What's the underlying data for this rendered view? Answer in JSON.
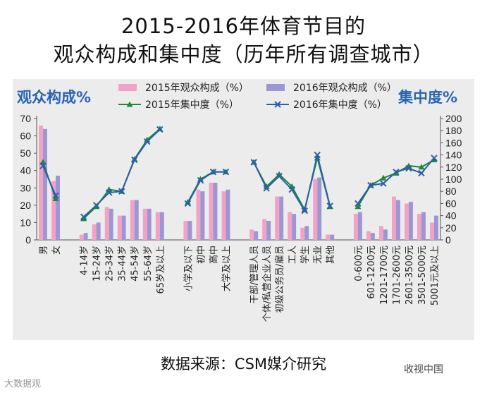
{
  "title_lines": [
    "2015-2016年体育节目的",
    "观众构成和集中度（历年所有调查城市）"
  ],
  "left_axis_label": "观众构成%",
  "right_axis_label": "集中度%",
  "source": "数据来源：CSM媒介研究",
  "watermark_left": "大数据观",
  "watermark_right": "收视中国",
  "colors": {
    "bar2015": "#f2a2c6",
    "bar2016": "#9c97d3",
    "line2015": "#1b8a3b",
    "line2016": "#2d5da8",
    "axis_label": "#2a64b0"
  },
  "chart_data": {
    "type": "bar+line",
    "legend_position": "top",
    "legend": [
      "2015年观众构成（%）",
      "2016年观众构成（%）",
      "2015年集中度（%）",
      "2016年集中度（%）"
    ],
    "categories": [
      "男",
      "女",
      "4-14岁",
      "15-24岁",
      "25-34岁",
      "35-44岁",
      "45-54岁",
      "55-64岁",
      "65岁及以上",
      "小学及以下",
      "初中",
      "高中",
      "大学及以上",
      "干部/管理人员",
      "个体/私营企业人员",
      "初级公务员/雇员",
      "工人",
      "学生",
      "无业",
      "其他",
      "0-600元",
      "601-1200元",
      "1201-1700元",
      "1701-2600元",
      "2601-3500元",
      "3501-5000元",
      "5001元及以上"
    ],
    "groups": [
      2,
      7,
      4,
      7,
      7
    ],
    "left_axis": {
      "min": 0,
      "max": 70,
      "ticks": [
        0,
        10,
        20,
        30,
        40,
        50,
        60,
        70
      ]
    },
    "right_axis": {
      "min": 0,
      "max": 200,
      "ticks": [
        0,
        20,
        40,
        60,
        80,
        100,
        120,
        140,
        160,
        180,
        200
      ]
    },
    "series": [
      {
        "name": "2015年观众构成（%）",
        "axis": "left",
        "kind": "bar",
        "values": [
          66,
          34,
          3,
          9,
          19,
          14,
          23,
          18,
          16,
          11,
          29,
          33,
          28,
          6,
          12,
          25,
          16,
          7,
          35,
          3,
          15,
          5,
          8,
          25,
          21,
          15,
          10
        ]
      },
      {
        "name": "2016年观众构成（%）",
        "axis": "left",
        "kind": "bar",
        "values": [
          64,
          37,
          4,
          10,
          18,
          14,
          23,
          18,
          16,
          11,
          28,
          33,
          29,
          5,
          11,
          25,
          15,
          8,
          36,
          3,
          16,
          4,
          6,
          23,
          22,
          16,
          14
        ]
      },
      {
        "name": "2015年集中度（%）",
        "axis": "right",
        "kind": "line",
        "values": [
          128,
          68,
          35,
          55,
          83,
          80,
          133,
          165,
          183,
          62,
          100,
          112,
          112,
          128,
          88,
          108,
          88,
          50,
          135,
          55,
          55,
          90,
          102,
          110,
          122,
          120,
          132
        ]
      },
      {
        "name": "2016年集中度（%）",
        "axis": "right",
        "kind": "line",
        "values": [
          122,
          73,
          38,
          57,
          78,
          80,
          132,
          162,
          182,
          60,
          98,
          112,
          112,
          128,
          85,
          105,
          83,
          48,
          140,
          56,
          60,
          90,
          93,
          112,
          118,
          110,
          135
        ]
      }
    ]
  }
}
